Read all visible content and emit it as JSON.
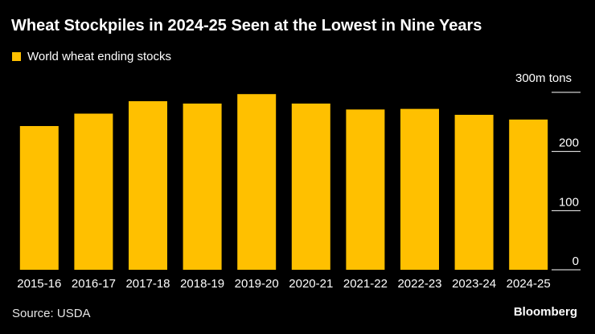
{
  "title": "Wheat Stockpiles in 2024-25 Seen at the Lowest in Nine Years",
  "legend_label": "World wheat ending stocks",
  "unit_label": "300m tons",
  "source": "Source: USDA",
  "brand": "Bloomberg",
  "colors": {
    "bar": "#ffc000",
    "background": "#000000",
    "text": "#ffffff",
    "grid": "#ffffff"
  },
  "chart_data": {
    "type": "bar",
    "title": "Wheat Stockpiles in 2024-25 Seen at the Lowest in Nine Years",
    "xlabel": "",
    "ylabel": "m tons",
    "ylim": [
      0,
      300
    ],
    "yticks": [
      0,
      100,
      200,
      300
    ],
    "ytick_labels": [
      "0",
      "100",
      "200",
      "300"
    ],
    "legend": "top-left",
    "categories": [
      "2015-16",
      "2016-17",
      "2017-18",
      "2018-19",
      "2019-20",
      "2020-21",
      "2021-22",
      "2022-23",
      "2023-24",
      "2024-25"
    ],
    "series": [
      {
        "name": "World wheat ending stocks",
        "values": [
          243,
          264,
          285,
          281,
          297,
          281,
          271,
          272,
          262,
          254
        ]
      }
    ]
  }
}
